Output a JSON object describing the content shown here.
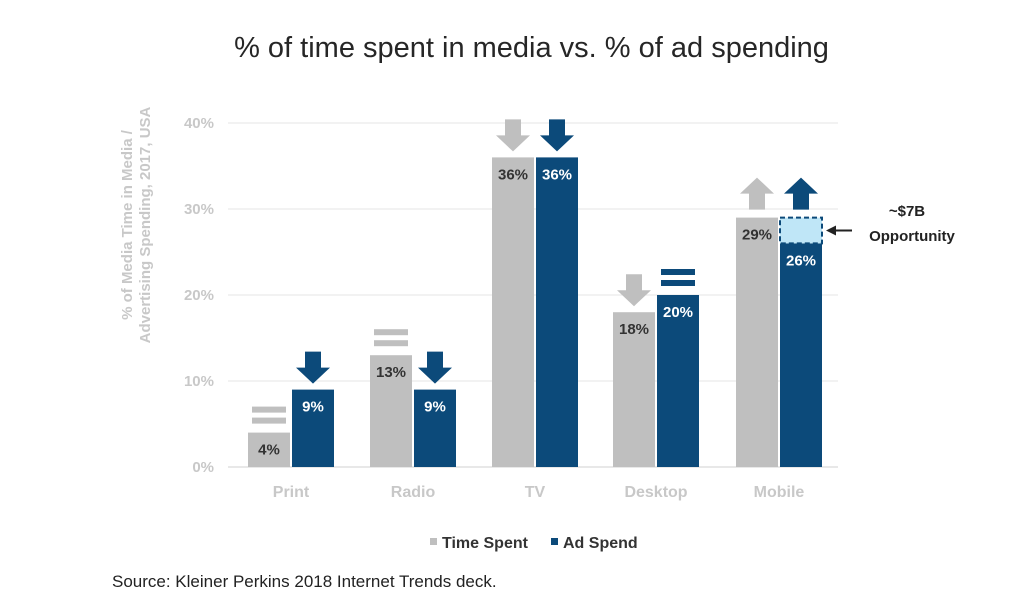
{
  "chart_data": {
    "type": "bar",
    "title": "% of time spent in media vs. % of ad spending",
    "ylabel": "% of Media Time in Media / Advertising Spending, 2017, USA",
    "ylabel_lines": [
      "% of Media Time in Media /",
      "Advertising Spending, 2017, USA"
    ],
    "xlabel": "",
    "ylim": [
      0,
      40
    ],
    "yticks": [
      0,
      10,
      20,
      30,
      40
    ],
    "ytick_labels": [
      "0%",
      "10%",
      "20%",
      "30%",
      "40%"
    ],
    "categories": [
      "Print",
      "Radio",
      "TV",
      "Desktop",
      "Mobile"
    ],
    "series": [
      {
        "name": "Time Spent",
        "color": "#bfbfbf",
        "values": [
          4,
          13,
          36,
          18,
          29
        ],
        "labels": [
          "4%",
          "13%",
          "36%",
          "18%",
          "29%"
        ],
        "trend": [
          "flat",
          "flat",
          "down",
          "down",
          "up"
        ]
      },
      {
        "name": "Ad Spend",
        "color": "#0c4a7a",
        "values": [
          9,
          9,
          36,
          20,
          26
        ],
        "labels": [
          "9%",
          "9%",
          "36%",
          "20%",
          "26%"
        ],
        "trend": [
          "down",
          "down",
          "down",
          "flat",
          "up"
        ]
      }
    ],
    "opportunity": {
      "category": "Mobile",
      "from": 26,
      "to": 29,
      "value_text": "~$7B",
      "label": "Opportunity",
      "fill_color": "#bfe6f7"
    },
    "legend": [
      "Time Spent",
      "Ad Spend"
    ],
    "legend_position": "bottom-center",
    "grid": true
  },
  "source_note": "Source: Kleiner Perkins 2018 Internet Trends deck."
}
